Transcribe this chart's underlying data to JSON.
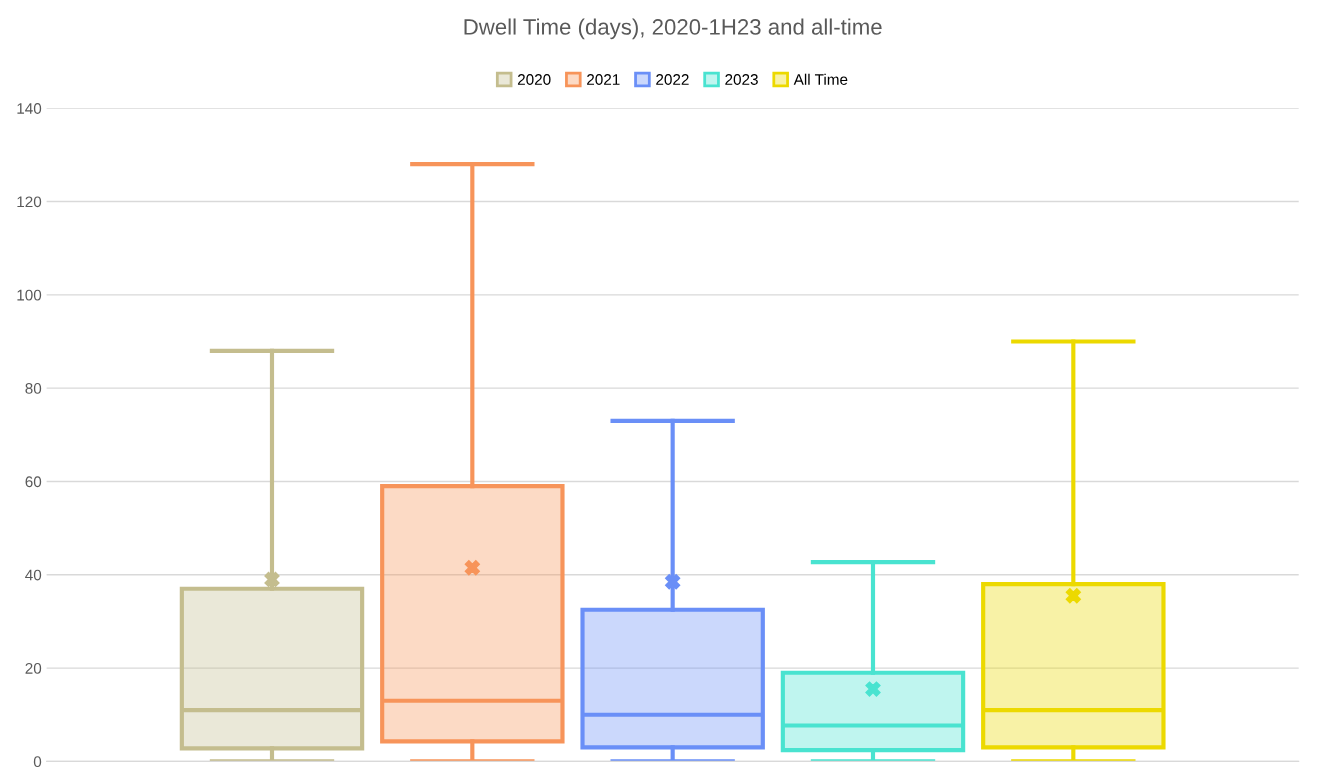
{
  "chart_data": {
    "type": "box",
    "title": "Dwell Time (days), 2020-1H23 and all-time",
    "categories": [
      null
    ],
    "series": [
      {
        "name": "2020",
        "color": "#c4bd8e",
        "boxes": [
          {
            "low": 0,
            "q1": 2.8,
            "median": 11,
            "q3": 37,
            "high": 88,
            "mean": 39
          }
        ]
      },
      {
        "name": "2021",
        "color": "#f7945a",
        "boxes": [
          {
            "low": 0,
            "q1": 4.3,
            "median": 13,
            "q3": 59,
            "high": 128,
            "mean": 41.5
          }
        ]
      },
      {
        "name": "2022",
        "color": "#6a8ff7",
        "boxes": [
          {
            "low": 0,
            "q1": 3,
            "median": 10,
            "q3": 32.5,
            "high": 73,
            "mean": 38.5
          }
        ]
      },
      {
        "name": "2023",
        "color": "#49e3d0",
        "boxes": [
          {
            "low": 0,
            "q1": 2.4,
            "median": 7.7,
            "q3": 19,
            "high": 42.7,
            "mean": 15.5
          }
        ]
      },
      {
        "name": "All Time",
        "color": "#ecd900",
        "boxes": [
          {
            "low": 0,
            "q1": 3,
            "median": 11,
            "q3": 38,
            "high": 90,
            "mean": 35.5
          }
        ]
      }
    ],
    "ylim": [
      0,
      140
    ],
    "yticks": [
      0,
      20,
      40,
      60,
      80,
      100,
      120,
      140
    ],
    "grid": "y",
    "legend": "top",
    "marker": "cross"
  }
}
